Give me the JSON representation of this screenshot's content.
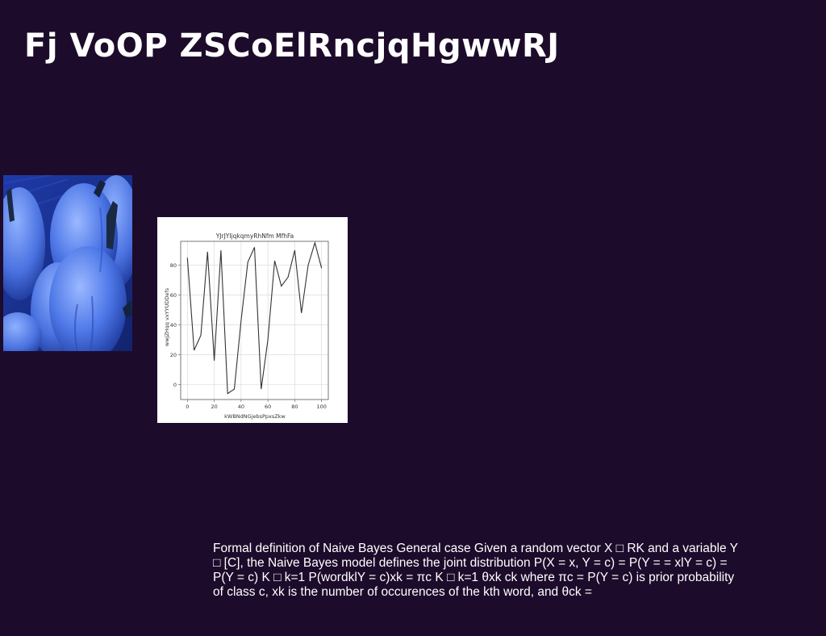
{
  "slide": {
    "title": "Fj VoOP ZSCoElRncjqHgwwRJ",
    "body_text": "Formal definition of Naive Bayes General case Given a random vector X □ RK and a variable Y □ [C], the Naive Bayes model defines the joint distribution P(X = x, Y = c) = P(Y = = xlY = c) = P(Y = c) K □ k=1 P(wordklY = c)xk = πc K □ k=1 θxk ck where πc = P(Y = c) is prior probability of class c, xk is the number of occurences of the kth word, and θck =",
    "photo": {
      "subject": "blue-tinted pumpkins"
    }
  },
  "chart_data": {
    "type": "line",
    "title": "YJrJYIjqkqmyRhNfm MfhFa",
    "xlabel": "kWBNdNGjebsPpxsZkw",
    "ylabel": "wwjZHqq vxYYUDDefs",
    "xlim": [
      -5,
      105
    ],
    "ylim": [
      -10,
      96
    ],
    "x_ticks": [
      0,
      20,
      40,
      60,
      80,
      100
    ],
    "y_ticks": [
      0,
      20,
      40,
      60,
      80
    ],
    "grid": true,
    "line_color": "#333333",
    "x": [
      0,
      5,
      10,
      15,
      20,
      25,
      30,
      35,
      40,
      45,
      50,
      55,
      60,
      65,
      70,
      75,
      80,
      85,
      90,
      95,
      100
    ],
    "values": [
      85,
      23,
      33,
      89,
      16,
      90,
      -6,
      -3,
      43,
      82,
      92,
      -3,
      30,
      83,
      66,
      72,
      90,
      48,
      80,
      95,
      78
    ]
  }
}
